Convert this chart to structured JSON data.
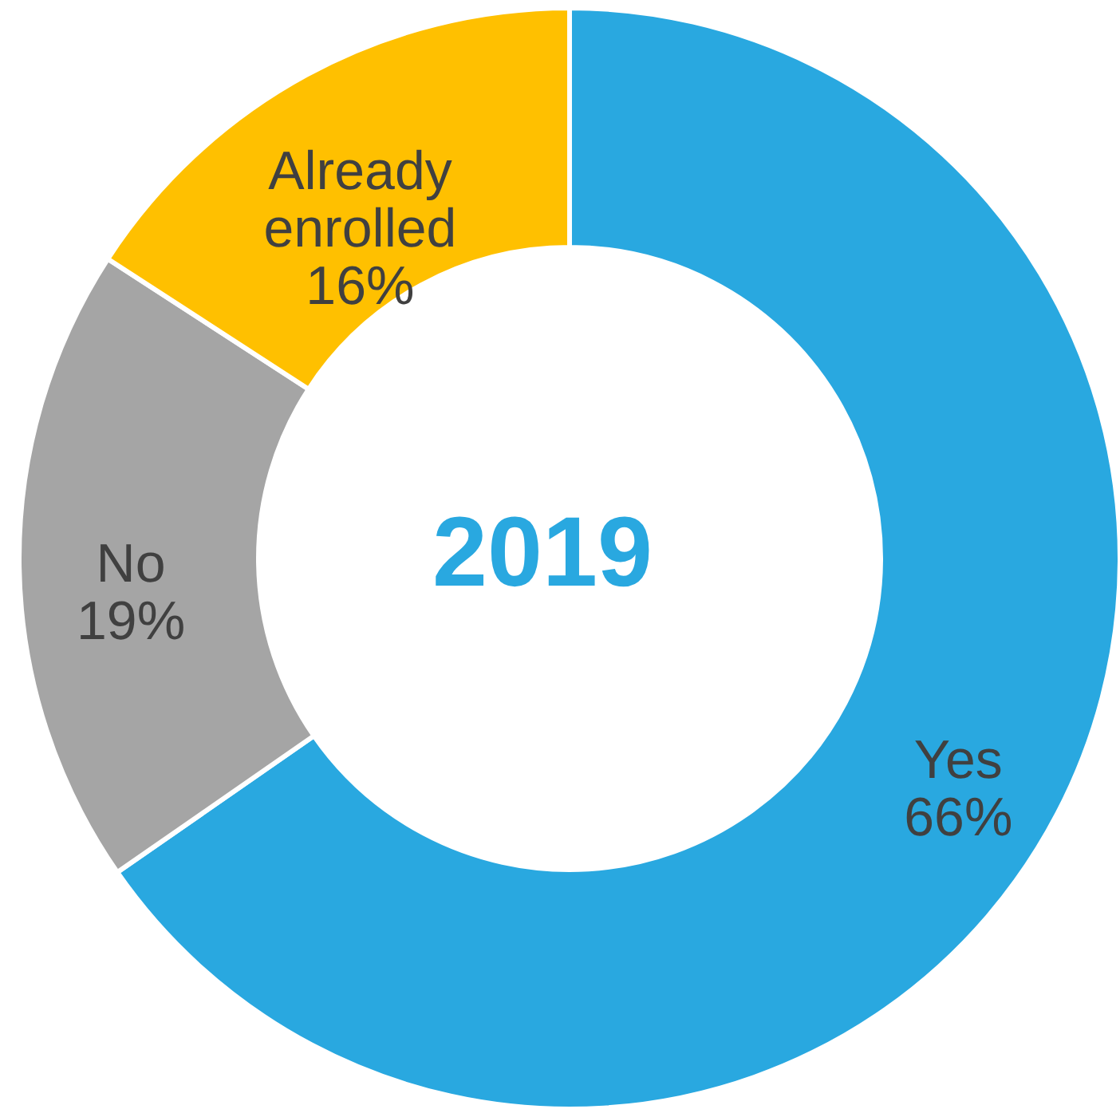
{
  "chart_data": {
    "type": "donut",
    "title": "2019",
    "categories": [
      "Yes",
      "No",
      "Already enrolled"
    ],
    "values": [
      66,
      19,
      16
    ],
    "colors": [
      "#29a8e0",
      "#a5a5a5",
      "#ffc000"
    ],
    "value_labels": [
      "66%",
      "19%",
      "16%"
    ]
  }
}
